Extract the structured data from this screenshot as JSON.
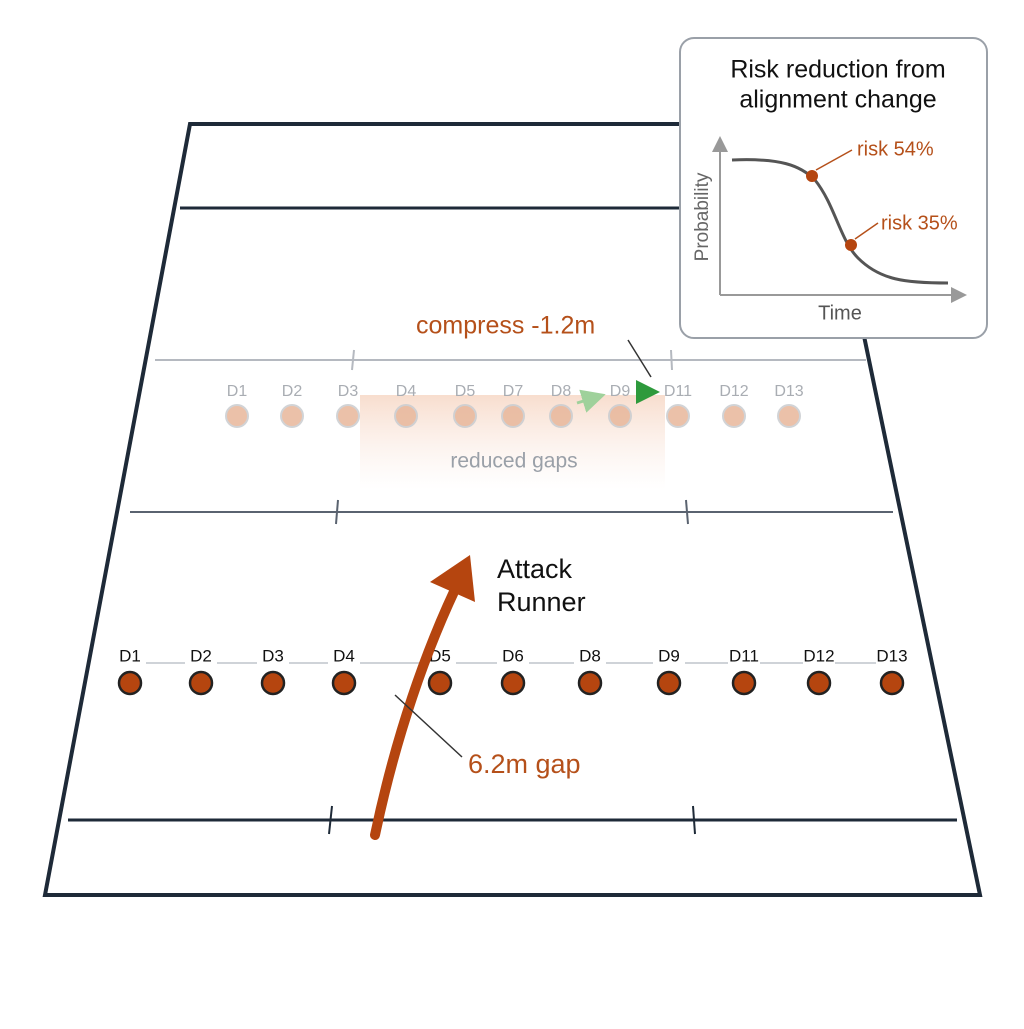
{
  "inset": {
    "title_line1": "Risk reduction from",
    "title_line2": "alignment change",
    "y_label": "Probability",
    "x_label": "Time",
    "annotations": [
      "risk 54%",
      "risk 35%"
    ]
  },
  "field": {
    "compress_label": "compress -1.2m",
    "reduced_gaps_label": "reduced gaps",
    "runner_line1": "Attack",
    "runner_line2": "Runner",
    "gap_label": "6.2m gap",
    "shifted_defenders": [
      "D1",
      "D2",
      "D3",
      "D4",
      "D5",
      "D7",
      "D8",
      "D9",
      "D11",
      "D12",
      "D13"
    ],
    "defenders": [
      "D1",
      "D2",
      "D3",
      "D4",
      "D5",
      "D6",
      "D8",
      "D9",
      "D11",
      "D12",
      "D13"
    ]
  }
}
